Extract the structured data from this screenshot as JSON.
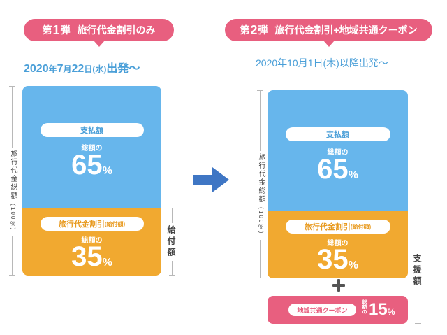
{
  "phase1": {
    "badge_prefix": "第",
    "badge_num": "1",
    "badge_suffix": "弾",
    "badge_desc": "旅行代金割引のみ",
    "date_year": "2020",
    "date_y_unit": "年",
    "date_month": "7",
    "date_m_unit": "月",
    "date_day": "22",
    "date_d_unit": "日",
    "date_weekday": "(水)",
    "date_tail": "出発〜",
    "scale_label": "旅行代金総額",
    "scale_note": "（100％）",
    "right_label": "給付額",
    "top_pill": "支払額",
    "top_sub": "総額の",
    "top_value": "65",
    "top_pct": "%",
    "bottom_pill": "旅行代金割引",
    "bottom_pill_note": "(給付額)",
    "bottom_sub": "総額の",
    "bottom_value": "35",
    "bottom_pct": "%"
  },
  "phase2": {
    "badge_prefix": "第",
    "badge_num": "2",
    "badge_suffix": "弾",
    "badge_desc": "旅行代金割引+地域共通クーポン",
    "date_text": "2020年10月1日(木)以降出発〜",
    "scale_label": "旅行代金総額",
    "scale_note": "（100％）",
    "right_label": "支援額",
    "top_pill": "支払額",
    "top_sub": "総額の",
    "top_value": "65",
    "top_pct": "%",
    "bottom_pill": "旅行代金割引",
    "bottom_pill_note": "(給付額)",
    "bottom_sub": "総額の",
    "bottom_value": "35",
    "bottom_pct": "%",
    "coupon_pill": "地域共通クーポン",
    "coupon_sub": "総額の",
    "coupon_value": "15",
    "coupon_pct": "%"
  },
  "colors": {
    "blue": "#67b6ec",
    "orange": "#f1a930",
    "pink": "#e85f7f",
    "arrow": "#3f76c4",
    "date_text": "#4a9fd8"
  },
  "icons": {
    "arrow": "right-arrow-icon",
    "plus": "plus-icon"
  }
}
